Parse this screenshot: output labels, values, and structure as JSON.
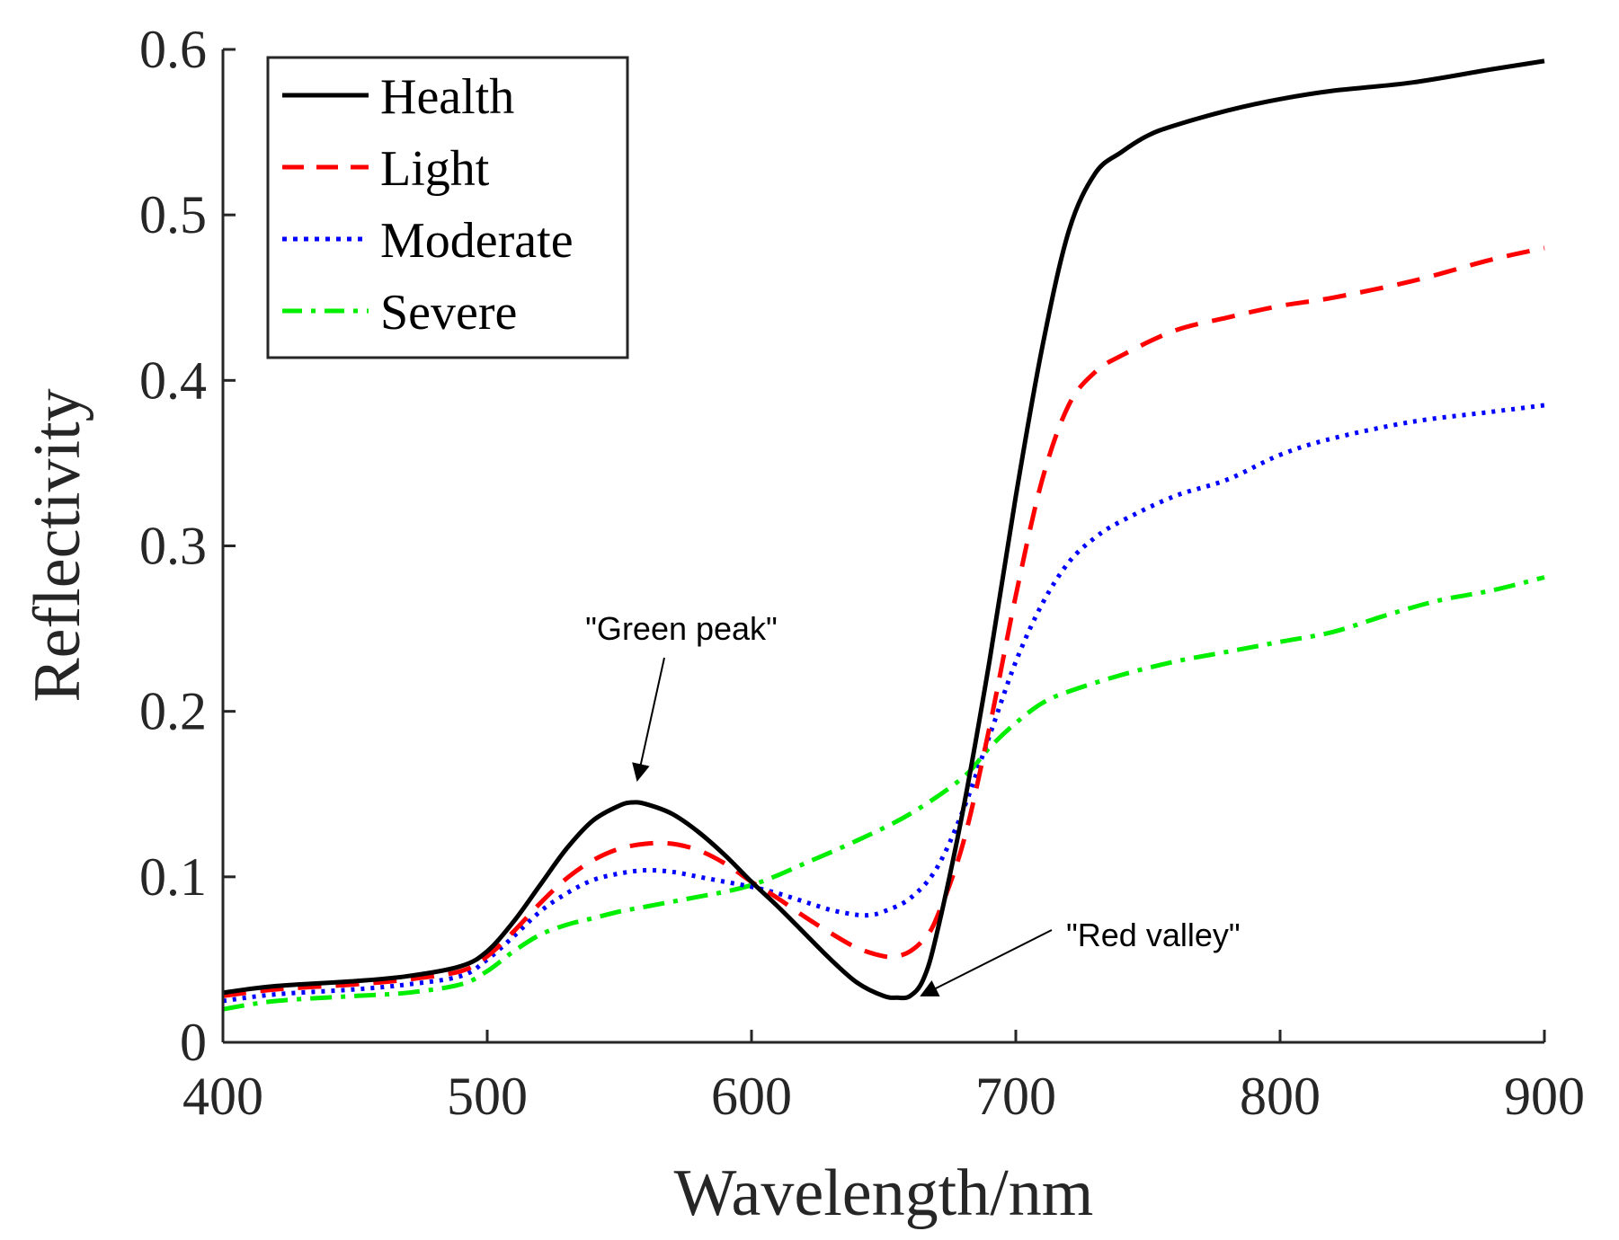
{
  "chart_data": {
    "type": "line",
    "title": "",
    "xlabel": "Wavelength/nm",
    "ylabel": "Reflectivity",
    "xlim": [
      400,
      900
    ],
    "ylim": [
      0,
      0.6
    ],
    "xticks": [
      400,
      500,
      600,
      700,
      800,
      900
    ],
    "xtick_labels": [
      "400",
      "500",
      "600",
      "700",
      "800",
      "900"
    ],
    "yticks": [
      0,
      0.1,
      0.2,
      0.3,
      0.4,
      0.5,
      0.6
    ],
    "ytick_labels": [
      "0",
      "0.1",
      "0.2",
      "0.3",
      "0.4",
      "0.5",
      "0.6"
    ],
    "grid": false,
    "legend_position": "top-left",
    "series": [
      {
        "name": "Health",
        "color": "#000000",
        "dash": "solid",
        "x": [
          400,
          420,
          450,
          470,
          490,
          500,
          510,
          520,
          530,
          540,
          550,
          555,
          560,
          570,
          580,
          590,
          600,
          610,
          620,
          630,
          640,
          650,
          655,
          660,
          665,
          670,
          680,
          690,
          700,
          710,
          720,
          730,
          740,
          750,
          760,
          780,
          800,
          820,
          850,
          880,
          900
        ],
        "y": [
          0.03,
          0.034,
          0.037,
          0.04,
          0.046,
          0.055,
          0.073,
          0.095,
          0.117,
          0.134,
          0.143,
          0.145,
          0.144,
          0.138,
          0.127,
          0.113,
          0.097,
          0.082,
          0.066,
          0.05,
          0.036,
          0.028,
          0.027,
          0.028,
          0.038,
          0.065,
          0.14,
          0.23,
          0.33,
          0.42,
          0.49,
          0.525,
          0.538,
          0.548,
          0.554,
          0.563,
          0.57,
          0.575,
          0.58,
          0.588,
          0.593
        ]
      },
      {
        "name": "Light",
        "color": "#ff0000",
        "dash": "dashed",
        "x": [
          400,
          420,
          450,
          470,
          490,
          500,
          510,
          520,
          530,
          540,
          550,
          560,
          570,
          580,
          590,
          600,
          610,
          620,
          630,
          640,
          650,
          655,
          660,
          665,
          670,
          680,
          690,
          700,
          710,
          720,
          730,
          740,
          760,
          780,
          800,
          820,
          850,
          880,
          900
        ],
        "y": [
          0.028,
          0.032,
          0.035,
          0.038,
          0.043,
          0.052,
          0.067,
          0.084,
          0.099,
          0.11,
          0.117,
          0.12,
          0.12,
          0.116,
          0.108,
          0.097,
          0.087,
          0.076,
          0.066,
          0.057,
          0.052,
          0.052,
          0.055,
          0.062,
          0.075,
          0.12,
          0.19,
          0.27,
          0.34,
          0.385,
          0.405,
          0.415,
          0.43,
          0.438,
          0.445,
          0.45,
          0.46,
          0.473,
          0.48
        ]
      },
      {
        "name": "Moderate",
        "color": "#0000ff",
        "dash": "dotted",
        "x": [
          400,
          420,
          450,
          470,
          490,
          500,
          510,
          520,
          530,
          540,
          550,
          560,
          570,
          580,
          590,
          600,
          610,
          620,
          630,
          640,
          645,
          650,
          660,
          670,
          680,
          690,
          700,
          710,
          720,
          730,
          740,
          760,
          780,
          800,
          820,
          850,
          880,
          900
        ],
        "y": [
          0.025,
          0.029,
          0.032,
          0.035,
          0.04,
          0.05,
          0.064,
          0.079,
          0.09,
          0.098,
          0.102,
          0.104,
          0.103,
          0.1,
          0.097,
          0.094,
          0.09,
          0.085,
          0.08,
          0.077,
          0.077,
          0.079,
          0.087,
          0.105,
          0.14,
          0.185,
          0.23,
          0.265,
          0.29,
          0.305,
          0.315,
          0.33,
          0.34,
          0.355,
          0.365,
          0.375,
          0.381,
          0.385
        ]
      },
      {
        "name": "Severe",
        "color": "#00ee00",
        "dash": "dashdot",
        "x": [
          400,
          420,
          450,
          470,
          490,
          500,
          510,
          520,
          530,
          540,
          550,
          560,
          570,
          580,
          590,
          600,
          610,
          620,
          640,
          660,
          680,
          690,
          700,
          710,
          720,
          740,
          760,
          780,
          800,
          820,
          840,
          860,
          880,
          900
        ],
        "y": [
          0.02,
          0.025,
          0.028,
          0.03,
          0.035,
          0.043,
          0.055,
          0.065,
          0.071,
          0.075,
          0.079,
          0.082,
          0.085,
          0.088,
          0.091,
          0.095,
          0.101,
          0.108,
          0.122,
          0.138,
          0.16,
          0.178,
          0.193,
          0.205,
          0.212,
          0.222,
          0.23,
          0.236,
          0.242,
          0.248,
          0.258,
          0.267,
          0.273,
          0.281
        ]
      }
    ],
    "annotations": [
      {
        "text": "\"Green peak\"",
        "target_x": 555,
        "target_y": 0.147
      },
      {
        "text": "\"Red valley\"",
        "target_x": 660,
        "target_y": 0.028
      }
    ]
  }
}
